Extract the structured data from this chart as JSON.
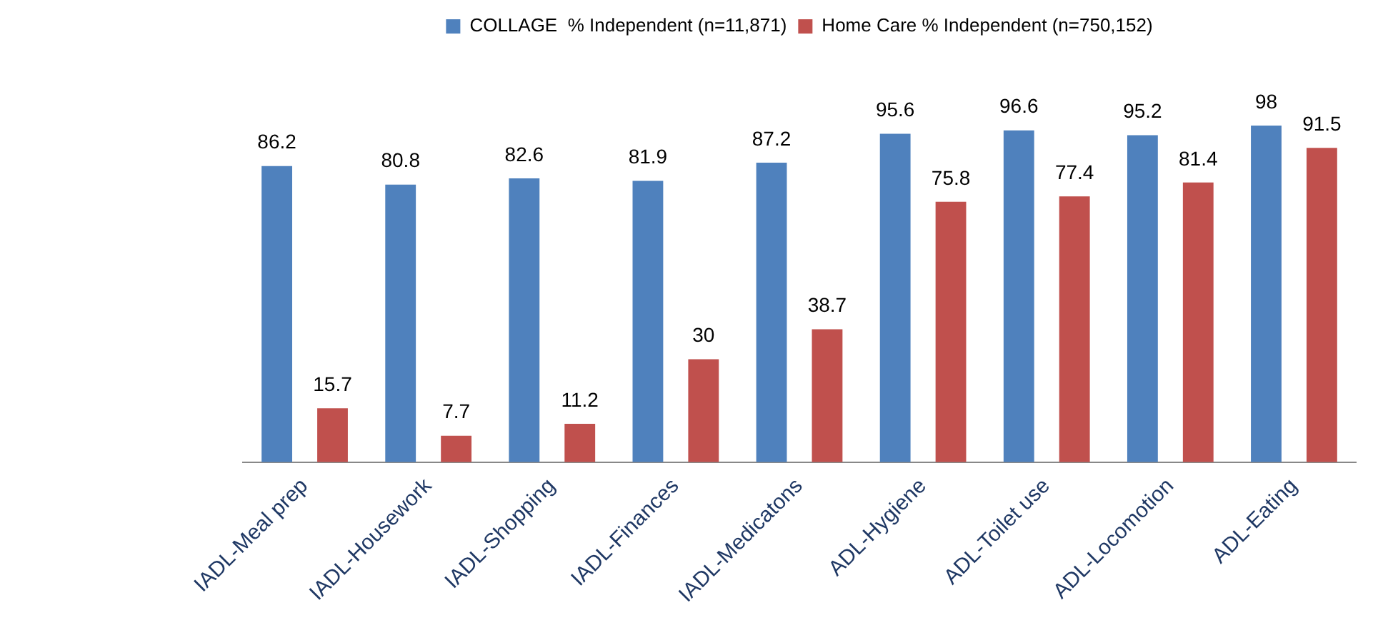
{
  "chart_data": {
    "type": "bar",
    "categories": [
      "IADL-Meal prep",
      "IADL-Housework",
      "IADL-Shopping",
      "IADL-Finances",
      "IADL-Medicatons",
      "ADL-Hygiene",
      "ADL-Toilet use",
      "ADL-Locomotion",
      "ADL-Eating"
    ],
    "series": [
      {
        "name": "COLLAGE  % Independent (n=11,871)",
        "color": "#4f81bd",
        "values": [
          86.2,
          80.8,
          82.6,
          81.9,
          87.2,
          95.6,
          96.6,
          95.2,
          98
        ]
      },
      {
        "name": "Home Care % Independent (n=750,152)",
        "color": "#c0504d",
        "values": [
          15.7,
          7.7,
          11.2,
          30,
          38.7,
          75.8,
          77.4,
          81.4,
          91.5
        ]
      }
    ],
    "data_labels": true,
    "legend": "top",
    "grid": false
  }
}
